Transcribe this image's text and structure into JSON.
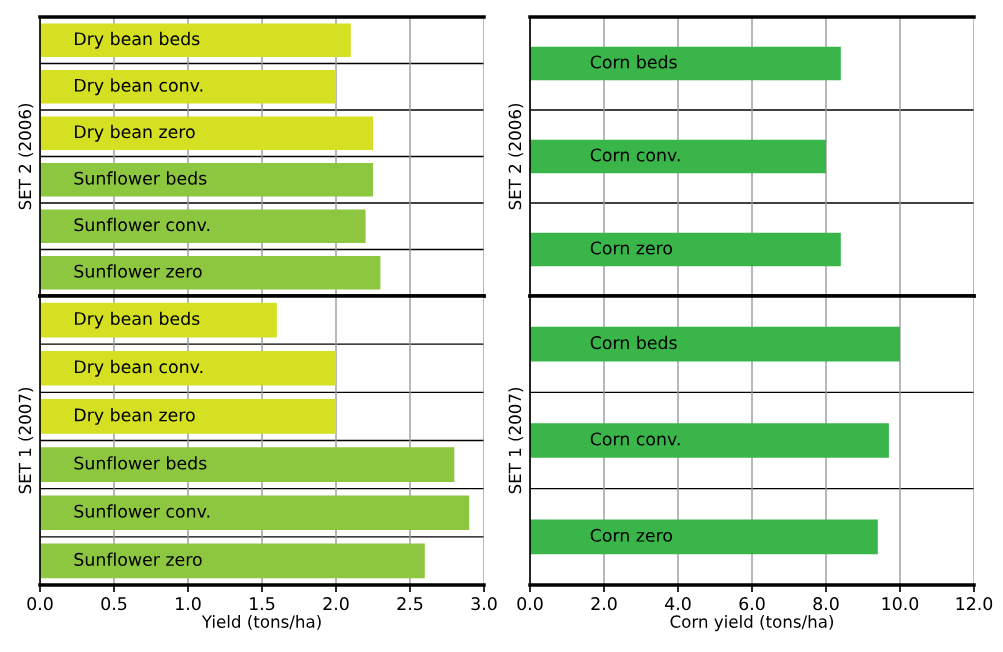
{
  "chart_data": [
    {
      "type": "bar",
      "orientation": "horizontal",
      "ylabel": "SET 2 (2006)",
      "categories": [
        "Dry bean beds",
        "Dry bean conv.",
        "Dry bean zero",
        "Sunflower beds",
        "Sunflower conv.",
        "Sunflower zero"
      ],
      "values": [
        2.1,
        2.0,
        2.25,
        2.25,
        2.2,
        2.3
      ],
      "colors": [
        "#d4e021",
        "#d4e021",
        "#d4e021",
        "#8dc63f",
        "#8dc63f",
        "#8dc63f"
      ],
      "xlim": [
        0,
        3
      ],
      "xticks": [
        {
          "value": 0,
          "label": null
        },
        {
          "value": 0.5,
          "label": null
        },
        {
          "value": 1,
          "label": null
        },
        {
          "value": 1.5,
          "label": null
        },
        {
          "value": 2,
          "label": null
        },
        {
          "value": 2.5,
          "label": null
        },
        {
          "value": 3,
          "label": null
        }
      ],
      "tick_labels": false,
      "grid": true
    },
    {
      "type": "bar",
      "orientation": "horizontal",
      "ylabel": "SET 2 (2006)",
      "categories": [
        "Corn beds",
        "Corn conv.",
        "Corn zero"
      ],
      "values": [
        8.4,
        8.0,
        8.4
      ],
      "colors": [
        "#39b54a",
        "#39b54a",
        "#39b54a"
      ],
      "xlim": [
        0,
        12
      ],
      "xticks": [
        {
          "value": 0,
          "label": null
        },
        {
          "value": 2,
          "label": null
        },
        {
          "value": 4,
          "label": null
        },
        {
          "value": 6,
          "label": null
        },
        {
          "value": 8,
          "label": null
        },
        {
          "value": 10,
          "label": null
        },
        {
          "value": 12,
          "label": null
        }
      ],
      "tick_labels": false,
      "grid": true
    },
    {
      "type": "bar",
      "orientation": "horizontal",
      "ylabel": "SET 1 (2007)",
      "xlabel": "Yield (tons/ha)",
      "categories": [
        "Dry bean beds",
        "Dry bean conv.",
        "Dry bean zero",
        "Sunflower beds",
        "Sunflower conv.",
        "Sunflower zero"
      ],
      "values": [
        1.6,
        2.0,
        2.0,
        2.8,
        2.9,
        2.6
      ],
      "colors": [
        "#d4e021",
        "#d4e021",
        "#d4e021",
        "#8dc63f",
        "#8dc63f",
        "#8dc63f"
      ],
      "xlim": [
        0,
        3
      ],
      "xticks": [
        {
          "value": 0,
          "label": "0.0"
        },
        {
          "value": 0.5,
          "label": "0.5"
        },
        {
          "value": 1,
          "label": "1.0"
        },
        {
          "value": 1.5,
          "label": "1.5"
        },
        {
          "value": 2,
          "label": "2.0"
        },
        {
          "value": 2.5,
          "label": "2.5"
        },
        {
          "value": 3,
          "label": "3.0"
        }
      ],
      "tick_labels": "x",
      "grid": true
    },
    {
      "type": "bar",
      "orientation": "horizontal",
      "ylabel": "SET 1 (2007)",
      "xlabel": "Corn yield (tons/ha)",
      "categories": [
        "Corn beds",
        "Corn conv.",
        "Corn zero"
      ],
      "values": [
        10.0,
        9.7,
        9.4
      ],
      "colors": [
        "#39b54a",
        "#39b54a",
        "#39b54a"
      ],
      "xlim": [
        0,
        12
      ],
      "xticks": [
        {
          "value": 0,
          "label": "0.0"
        },
        {
          "value": 2,
          "label": "2.0"
        },
        {
          "value": 4,
          "label": "4.0"
        },
        {
          "value": 6,
          "label": "6.0"
        },
        {
          "value": 8,
          "label": "8.0"
        },
        {
          "value": 10,
          "label": "10.0"
        },
        {
          "value": 12,
          "label": "12.0"
        }
      ],
      "tick_labels": "x",
      "grid": true
    }
  ]
}
